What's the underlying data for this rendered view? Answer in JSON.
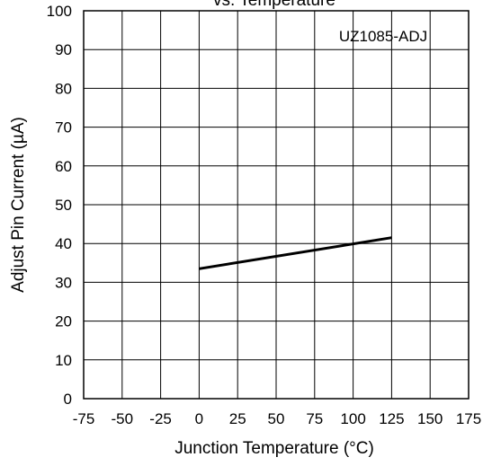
{
  "chart_data": {
    "type": "line",
    "title": "vs. Temperature",
    "xlabel": "Junction Temperature (°C)",
    "ylabel": "Adjust Pin Current (µA)",
    "xlim": [
      -75,
      175
    ],
    "ylim": [
      0,
      100
    ],
    "x_ticks": [
      -75,
      -50,
      -25,
      0,
      25,
      50,
      75,
      100,
      125,
      150,
      175
    ],
    "y_ticks": [
      0,
      10,
      20,
      30,
      40,
      50,
      60,
      70,
      80,
      90,
      100
    ],
    "grid": true,
    "annotation": "UZ1085-ADJ",
    "series": [
      {
        "x": [
          0,
          125
        ],
        "y": [
          33.5,
          41.5
        ],
        "color": "#000000"
      }
    ]
  }
}
